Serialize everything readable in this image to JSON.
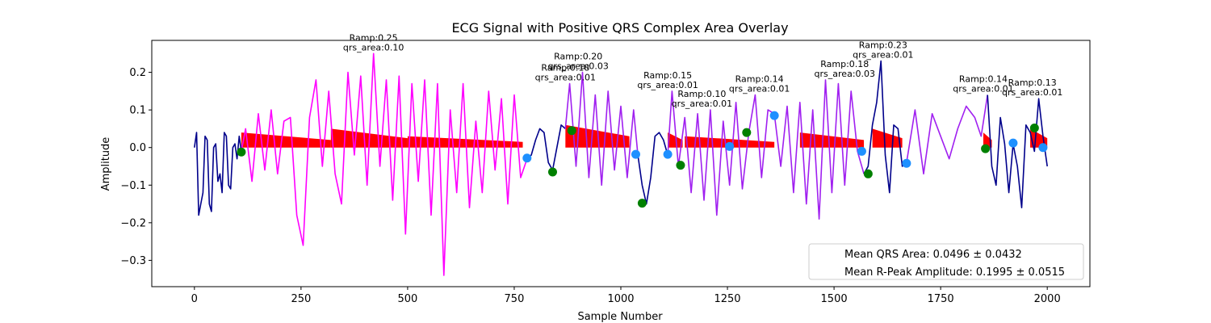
{
  "chart_data": {
    "type": "line",
    "title": "ECG Signal with Positive QRS Complex Area Overlay",
    "xlabel": "Sample Number",
    "ylabel": "Amplitude",
    "xlim": [
      -100,
      2100
    ],
    "ylim": [
      -0.37,
      0.285
    ],
    "xticks": [
      0,
      250,
      500,
      750,
      1000,
      1250,
      1500,
      1750,
      2000
    ],
    "yticks": [
      -0.3,
      -0.2,
      -0.1,
      0.0,
      0.1,
      0.2
    ],
    "grid": false,
    "legend_position": "bottom-right",
    "legend": [
      "Mean QRS Area: 0.0496 ± 0.0432",
      "Mean R-Peak Amplitude: 0.1995 ± 0.0515"
    ],
    "colors": {
      "baseline_signal": "#00008b",
      "segment_magenta": "#ff00ff",
      "segment_violet": "#a020f0",
      "qrs_area_fill": "#ff0000",
      "onset_marker": "#1e90ff",
      "offset_marker": "#008000"
    },
    "series": [
      {
        "segment": "baseline-start",
        "color": "#00008b",
        "x": [
          0,
          5,
          10,
          15,
          20,
          25,
          30,
          35,
          40,
          45,
          50,
          55,
          60,
          65,
          70,
          75,
          80,
          85,
          90,
          95,
          100,
          105,
          110
        ],
        "y": [
          0.0,
          0.04,
          -0.18,
          -0.15,
          -0.12,
          0.03,
          0.02,
          -0.15,
          -0.17,
          0.0,
          0.01,
          -0.09,
          -0.07,
          -0.12,
          0.04,
          0.03,
          -0.1,
          -0.11,
          0.0,
          0.01,
          -0.03,
          0.03,
          -0.01
        ]
      },
      {
        "segment": "magenta-block",
        "color": "#ff00ff",
        "x": [
          110,
          120,
          135,
          150,
          165,
          180,
          195,
          210,
          225,
          240,
          255,
          270,
          285,
          300,
          315,
          330,
          345,
          360,
          375,
          390,
          405,
          420,
          435,
          450,
          465,
          480,
          495,
          510,
          525,
          540,
          555,
          570,
          585,
          600,
          615,
          630,
          645,
          660,
          675,
          690,
          705,
          720,
          735,
          750,
          765,
          780
        ],
        "y": [
          -0.01,
          0.05,
          -0.09,
          0.09,
          -0.06,
          0.1,
          -0.07,
          0.07,
          0.08,
          -0.18,
          -0.26,
          0.08,
          0.18,
          -0.05,
          0.15,
          -0.07,
          -0.15,
          0.2,
          -0.02,
          0.19,
          -0.1,
          0.25,
          -0.05,
          0.18,
          -0.14,
          0.19,
          -0.23,
          0.17,
          -0.09,
          0.18,
          -0.18,
          0.17,
          -0.34,
          0.1,
          -0.12,
          0.17,
          -0.16,
          0.07,
          -0.12,
          0.15,
          -0.06,
          0.13,
          -0.15,
          0.14,
          -0.08,
          -0.03
        ]
      },
      {
        "segment": "baseline-mid-1",
        "color": "#00008b",
        "x": [
          780,
          790,
          800,
          810,
          820,
          830,
          840,
          850,
          860,
          870
        ],
        "y": [
          -0.03,
          -0.02,
          0.02,
          0.05,
          0.04,
          -0.04,
          -0.06,
          0.0,
          0.06,
          0.05
        ]
      },
      {
        "segment": "violet-block-1",
        "color": "#a020f0",
        "x": [
          870,
          880,
          895,
          910,
          925,
          940,
          955,
          970,
          985,
          1000,
          1015,
          1030,
          1040
        ],
        "y": [
          0.05,
          0.17,
          -0.05,
          0.2,
          -0.08,
          0.14,
          -0.1,
          0.15,
          -0.06,
          0.11,
          -0.08,
          0.1,
          -0.02
        ]
      },
      {
        "segment": "baseline-mid-2",
        "color": "#00008b",
        "x": [
          1040,
          1050,
          1060,
          1070,
          1080,
          1090,
          1100,
          1110
        ],
        "y": [
          -0.02,
          -0.1,
          -0.15,
          -0.08,
          0.03,
          0.04,
          0.02,
          -0.02
        ]
      },
      {
        "segment": "violet-block-2",
        "color": "#a020f0",
        "x": [
          1110,
          1120,
          1135,
          1150,
          1165,
          1180,
          1195,
          1210,
          1225,
          1240,
          1255,
          1270,
          1285,
          1300,
          1315,
          1330,
          1345,
          1360,
          1375,
          1390,
          1405,
          1420,
          1435,
          1450,
          1465,
          1480,
          1495,
          1510,
          1525,
          1540,
          1555,
          1570
        ],
        "y": [
          -0.02,
          0.15,
          -0.05,
          0.08,
          -0.12,
          0.09,
          -0.14,
          0.1,
          -0.18,
          0.07,
          -0.1,
          0.12,
          -0.11,
          0.04,
          0.14,
          -0.08,
          0.1,
          0.09,
          -0.05,
          0.11,
          -0.12,
          0.12,
          -0.15,
          0.1,
          -0.19,
          0.18,
          -0.12,
          0.17,
          -0.1,
          0.15,
          -0.01,
          -0.07
        ]
      },
      {
        "segment": "baseline-mid-3",
        "color": "#00008b",
        "x": [
          1570,
          1580,
          1590,
          1600,
          1610,
          1620,
          1630,
          1640,
          1650,
          1660,
          1670
        ],
        "y": [
          -0.07,
          -0.05,
          0.06,
          0.12,
          0.23,
          -0.02,
          -0.12,
          0.06,
          0.05,
          -0.05,
          -0.04
        ]
      },
      {
        "segment": "violet-block-3",
        "color": "#a020f0",
        "x": [
          1670,
          1690,
          1710,
          1730,
          1750,
          1770,
          1790,
          1810,
          1830,
          1845,
          1860
        ],
        "y": [
          -0.04,
          0.1,
          -0.07,
          0.09,
          0.03,
          -0.03,
          0.05,
          0.11,
          0.08,
          0.03,
          0.14
        ]
      },
      {
        "segment": "baseline-end",
        "color": "#00008b",
        "x": [
          1860,
          1870,
          1880,
          1890,
          1900,
          1910,
          1920,
          1930,
          1940,
          1950,
          1960,
          1970,
          1980,
          1990,
          2000
        ],
        "y": [
          0.14,
          -0.05,
          -0.1,
          0.08,
          0.01,
          -0.12,
          0.01,
          -0.05,
          -0.16,
          0.06,
          0.04,
          -0.01,
          0.13,
          0.03,
          -0.05
        ]
      }
    ],
    "qrs_areas": [
      {
        "x": [
          110,
          320
        ],
        "top": 0.04
      },
      {
        "x": [
          320,
          500
        ],
        "top": 0.05
      },
      {
        "x": [
          500,
          770
        ],
        "top": 0.03
      },
      {
        "x": [
          870,
          1020
        ],
        "top": 0.06
      },
      {
        "x": [
          1110,
          1145
        ],
        "top": 0.04
      },
      {
        "x": [
          1150,
          1360
        ],
        "top": 0.03
      },
      {
        "x": [
          1420,
          1570
        ],
        "top": 0.04
      },
      {
        "x": [
          1590,
          1660
        ],
        "top": 0.05
      },
      {
        "x": [
          1850,
          1870
        ],
        "top": 0.04
      },
      {
        "x": [
          1960,
          2000
        ],
        "top": 0.05
      }
    ],
    "onset_points": [
      {
        "x": 780,
        "y": -0.028
      },
      {
        "x": 1035,
        "y": -0.018
      },
      {
        "x": 1110,
        "y": -0.018
      },
      {
        "x": 1255,
        "y": 0.003
      },
      {
        "x": 1360,
        "y": 0.085
      },
      {
        "x": 1565,
        "y": -0.01
      },
      {
        "x": 1670,
        "y": -0.042
      },
      {
        "x": 1920,
        "y": 0.012
      },
      {
        "x": 1990,
        "y": 0.0
      }
    ],
    "offset_points": [
      {
        "x": 110,
        "y": -0.012
      },
      {
        "x": 840,
        "y": -0.065
      },
      {
        "x": 885,
        "y": 0.045
      },
      {
        "x": 1050,
        "y": -0.148
      },
      {
        "x": 1140,
        "y": -0.047
      },
      {
        "x": 1295,
        "y": 0.04
      },
      {
        "x": 1580,
        "y": -0.07
      },
      {
        "x": 1855,
        "y": -0.003
      },
      {
        "x": 1970,
        "y": 0.052
      }
    ],
    "annotations": [
      {
        "x": 420,
        "y": 0.25,
        "ramp": "Ramp:0.25",
        "qrs": "qrs_area:0.10"
      },
      {
        "x": 870,
        "y": 0.17,
        "ramp": "Ramp:0.18",
        "qrs": "qrs_area:0.01"
      },
      {
        "x": 900,
        "y": 0.2,
        "ramp": "Ramp:0.20",
        "qrs": "qrs_area:0.03"
      },
      {
        "x": 1110,
        "y": 0.15,
        "ramp": "Ramp:0.15",
        "qrs": "qrs_area:0.01"
      },
      {
        "x": 1190,
        "y": 0.1,
        "ramp": "Ramp:0.10",
        "qrs": "qrs_area:0.01"
      },
      {
        "x": 1325,
        "y": 0.14,
        "ramp": "Ramp:0.14",
        "qrs": "qrs_area:0.01"
      },
      {
        "x": 1525,
        "y": 0.18,
        "ramp": "Ramp:0.18",
        "qrs": "qrs_area:0.03"
      },
      {
        "x": 1615,
        "y": 0.23,
        "ramp": "Ramp:0.23",
        "qrs": "qrs_area:0.01"
      },
      {
        "x": 1850,
        "y": 0.14,
        "ramp": "Ramp:0.14",
        "qrs": "qrs_area:0.01"
      },
      {
        "x": 1965,
        "y": 0.13,
        "ramp": "Ramp:0.13",
        "qrs": "qrs_area:0.01"
      }
    ]
  }
}
